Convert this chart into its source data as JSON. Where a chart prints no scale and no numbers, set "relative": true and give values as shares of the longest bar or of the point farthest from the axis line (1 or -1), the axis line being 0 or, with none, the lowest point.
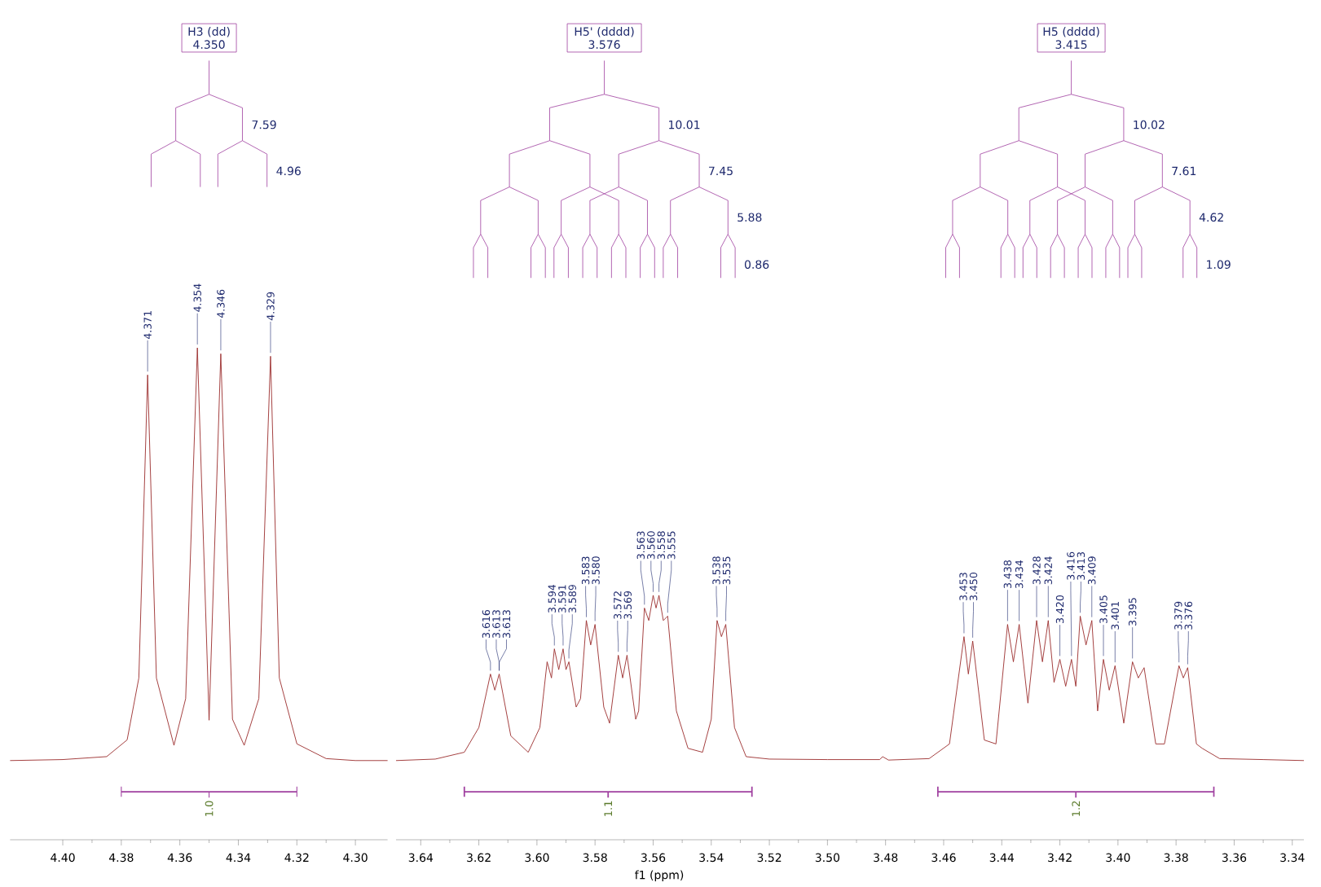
{
  "chart_data": [
    {
      "type": "line",
      "relative": true,
      "xlim": [
        4.418,
        4.289
      ],
      "xticks": [
        {
          "value": 4.4,
          "label": "4.40"
        },
        {
          "value": 4.38,
          "label": "4.38"
        },
        {
          "value": 4.36,
          "label": "4.36"
        },
        {
          "value": 4.34,
          "label": "4.34"
        },
        {
          "value": 4.32,
          "label": "4.32"
        },
        {
          "value": 4.3,
          "label": "4.30"
        }
      ],
      "series": [
        {
          "color": "#9b2d2d",
          "x": [
            4.418,
            4.4,
            4.385,
            4.378,
            4.374,
            4.371,
            4.368,
            4.362,
            4.358,
            4.354,
            4.35,
            4.346,
            4.342,
            4.338,
            4.333,
            4.329,
            4.326,
            4.32,
            4.31,
            4.3,
            4.289
          ],
          "values": [
            0.161,
            0.163,
            0.169,
            0.203,
            0.329,
            0.945,
            0.329,
            0.192,
            0.287,
            1.0,
            0.243,
            0.988,
            0.245,
            0.192,
            0.287,
            0.983,
            0.329,
            0.195,
            0.165,
            0.161,
            0.161
          ]
        }
      ],
      "annotations": [
        "H3 (dd)\n4.350",
        "7.59",
        "4.96",
        "1.0",
        {
          "text": "4.371",
          "x": 4.371,
          "y": 0.945
        },
        {
          "text": "4.354",
          "x": 4.354,
          "y": 1.0
        },
        {
          "text": "4.346",
          "x": 4.346,
          "y": 0.988
        },
        {
          "text": "4.329",
          "x": 4.329,
          "y": 0.983
        }
      ]
    },
    {
      "type": "line",
      "relative": true,
      "xlim": [
        3.6485,
        3.336
      ],
      "xlabel": "f1 (ppm)",
      "xticks": [
        {
          "value": 3.64,
          "label": "3.64"
        },
        {
          "value": 3.62,
          "label": "3.62"
        },
        {
          "value": 3.6,
          "label": "3.60"
        },
        {
          "value": 3.58,
          "label": "3.58"
        },
        {
          "value": 3.56,
          "label": "3.56"
        },
        {
          "value": 3.54,
          "label": "3.54"
        },
        {
          "value": 3.52,
          "label": "3.52"
        },
        {
          "value": 3.5,
          "label": "3.50"
        },
        {
          "value": 3.48,
          "label": "3.48"
        },
        {
          "value": 3.46,
          "label": "3.46"
        },
        {
          "value": 3.44,
          "label": "3.44"
        },
        {
          "value": 3.42,
          "label": "3.42"
        },
        {
          "value": 3.4,
          "label": "3.40"
        },
        {
          "value": 3.38,
          "label": "3.38"
        },
        {
          "value": 3.36,
          "label": "3.36"
        },
        {
          "value": 3.34,
          "label": "3.34"
        }
      ],
      "series": [
        {
          "color": "#9b2d2d",
          "x": [
            3.6485,
            3.635,
            3.625,
            3.62,
            3.616,
            3.6145,
            3.613,
            3.609,
            3.603,
            3.599,
            3.5965,
            3.595,
            3.594,
            3.5925,
            3.591,
            3.59,
            3.589,
            3.5865,
            3.585,
            3.583,
            3.5815,
            3.58,
            3.577,
            3.575,
            3.572,
            3.5705,
            3.569,
            3.566,
            3.565,
            3.563,
            3.5615,
            3.56,
            3.559,
            3.558,
            3.5565,
            3.555,
            3.552,
            3.548,
            3.543,
            3.54,
            3.538,
            3.5365,
            3.535,
            3.532,
            3.528,
            3.52,
            3.5,
            3.482,
            3.481,
            3.479,
            3.465,
            3.458,
            3.453,
            3.4515,
            3.45,
            3.446,
            3.442,
            3.438,
            3.436,
            3.434,
            3.431,
            3.428,
            3.426,
            3.424,
            3.422,
            3.42,
            3.418,
            3.416,
            3.4145,
            3.413,
            3.411,
            3.409,
            3.407,
            3.405,
            3.403,
            3.401,
            3.398,
            3.395,
            3.393,
            3.391,
            3.387,
            3.384,
            3.379,
            3.3775,
            3.376,
            3.373,
            3.371,
            3.365,
            3.35,
            3.336
          ],
          "values": [
            0.324,
            0.33,
            0.358,
            0.459,
            0.678,
            0.612,
            0.678,
            0.425,
            0.358,
            0.459,
            0.728,
            0.662,
            0.781,
            0.696,
            0.781,
            0.696,
            0.728,
            0.543,
            0.577,
            0.897,
            0.797,
            0.881,
            0.543,
            0.477,
            0.755,
            0.662,
            0.755,
            0.493,
            0.527,
            0.948,
            0.897,
            1.0,
            0.948,
            1.0,
            0.897,
            0.915,
            0.527,
            0.374,
            0.358,
            0.493,
            0.897,
            0.831,
            0.881,
            0.459,
            0.34,
            0.33,
            0.328,
            0.328,
            0.34,
            0.326,
            0.332,
            0.392,
            0.831,
            0.678,
            0.813,
            0.408,
            0.392,
            0.881,
            0.728,
            0.881,
            0.559,
            0.897,
            0.728,
            0.897,
            0.644,
            0.738,
            0.628,
            0.738,
            0.628,
            0.915,
            0.797,
            0.897,
            0.527,
            0.738,
            0.612,
            0.712,
            0.477,
            0.728,
            0.662,
            0.704,
            0.392,
            0.392,
            0.712,
            0.662,
            0.704,
            0.392,
            0.374,
            0.332,
            0.328,
            0.324
          ]
        }
      ],
      "annotations": [
        "H5' (dddd)\n3.576",
        "10.01",
        "7.45",
        "5.88",
        "0.86",
        "1.1",
        "H5 (dddd)\n3.415",
        "10.02",
        "7.61",
        "4.62",
        "1.09",
        "1.2",
        {
          "text": "3.616",
          "x": 3.616,
          "y": 0.678
        },
        {
          "text": "3.613",
          "x": 3.613,
          "y": 0.678
        },
        {
          "text": "3.613",
          "x": 3.613,
          "y": 0.678
        },
        {
          "text": "3.594",
          "x": 3.594,
          "y": 0.781
        },
        {
          "text": "3.591",
          "x": 3.591,
          "y": 0.781
        },
        {
          "text": "3.589",
          "x": 3.589,
          "y": 0.728
        },
        {
          "text": "3.583",
          "x": 3.583,
          "y": 0.897
        },
        {
          "text": "3.580",
          "x": 3.58,
          "y": 0.881
        },
        {
          "text": "3.572",
          "x": 3.572,
          "y": 0.755
        },
        {
          "text": "3.569",
          "x": 3.569,
          "y": 0.755
        },
        {
          "text": "3.563",
          "x": 3.563,
          "y": 0.948
        },
        {
          "text": "3.560",
          "x": 3.56,
          "y": 1.0
        },
        {
          "text": "3.558",
          "x": 3.558,
          "y": 1.0
        },
        {
          "text": "3.555",
          "x": 3.555,
          "y": 0.915
        },
        {
          "text": "3.538",
          "x": 3.538,
          "y": 0.897
        },
        {
          "text": "3.535",
          "x": 3.535,
          "y": 0.881
        },
        {
          "text": "3.453",
          "x": 3.453,
          "y": 0.831
        },
        {
          "text": "3.450",
          "x": 3.45,
          "y": 0.813
        },
        {
          "text": "3.438",
          "x": 3.438,
          "y": 0.881
        },
        {
          "text": "3.434",
          "x": 3.434,
          "y": 0.881
        },
        {
          "text": "3.428",
          "x": 3.428,
          "y": 0.897
        },
        {
          "text": "3.424",
          "x": 3.424,
          "y": 0.897
        },
        {
          "text": "3.420",
          "x": 3.42,
          "y": 0.738
        },
        {
          "text": "3.416",
          "x": 3.416,
          "y": 0.738
        },
        {
          "text": "3.413",
          "x": 3.413,
          "y": 0.915
        },
        {
          "text": "3.409",
          "x": 3.409,
          "y": 0.897
        },
        {
          "text": "3.405",
          "x": 3.405,
          "y": 0.738
        },
        {
          "text": "3.401",
          "x": 3.401,
          "y": 0.712
        },
        {
          "text": "3.395",
          "x": 3.395,
          "y": 0.728
        },
        {
          "text": "3.379",
          "x": 3.379,
          "y": 0.712
        },
        {
          "text": "3.376",
          "x": 3.376,
          "y": 0.704
        }
      ]
    }
  ]
}
